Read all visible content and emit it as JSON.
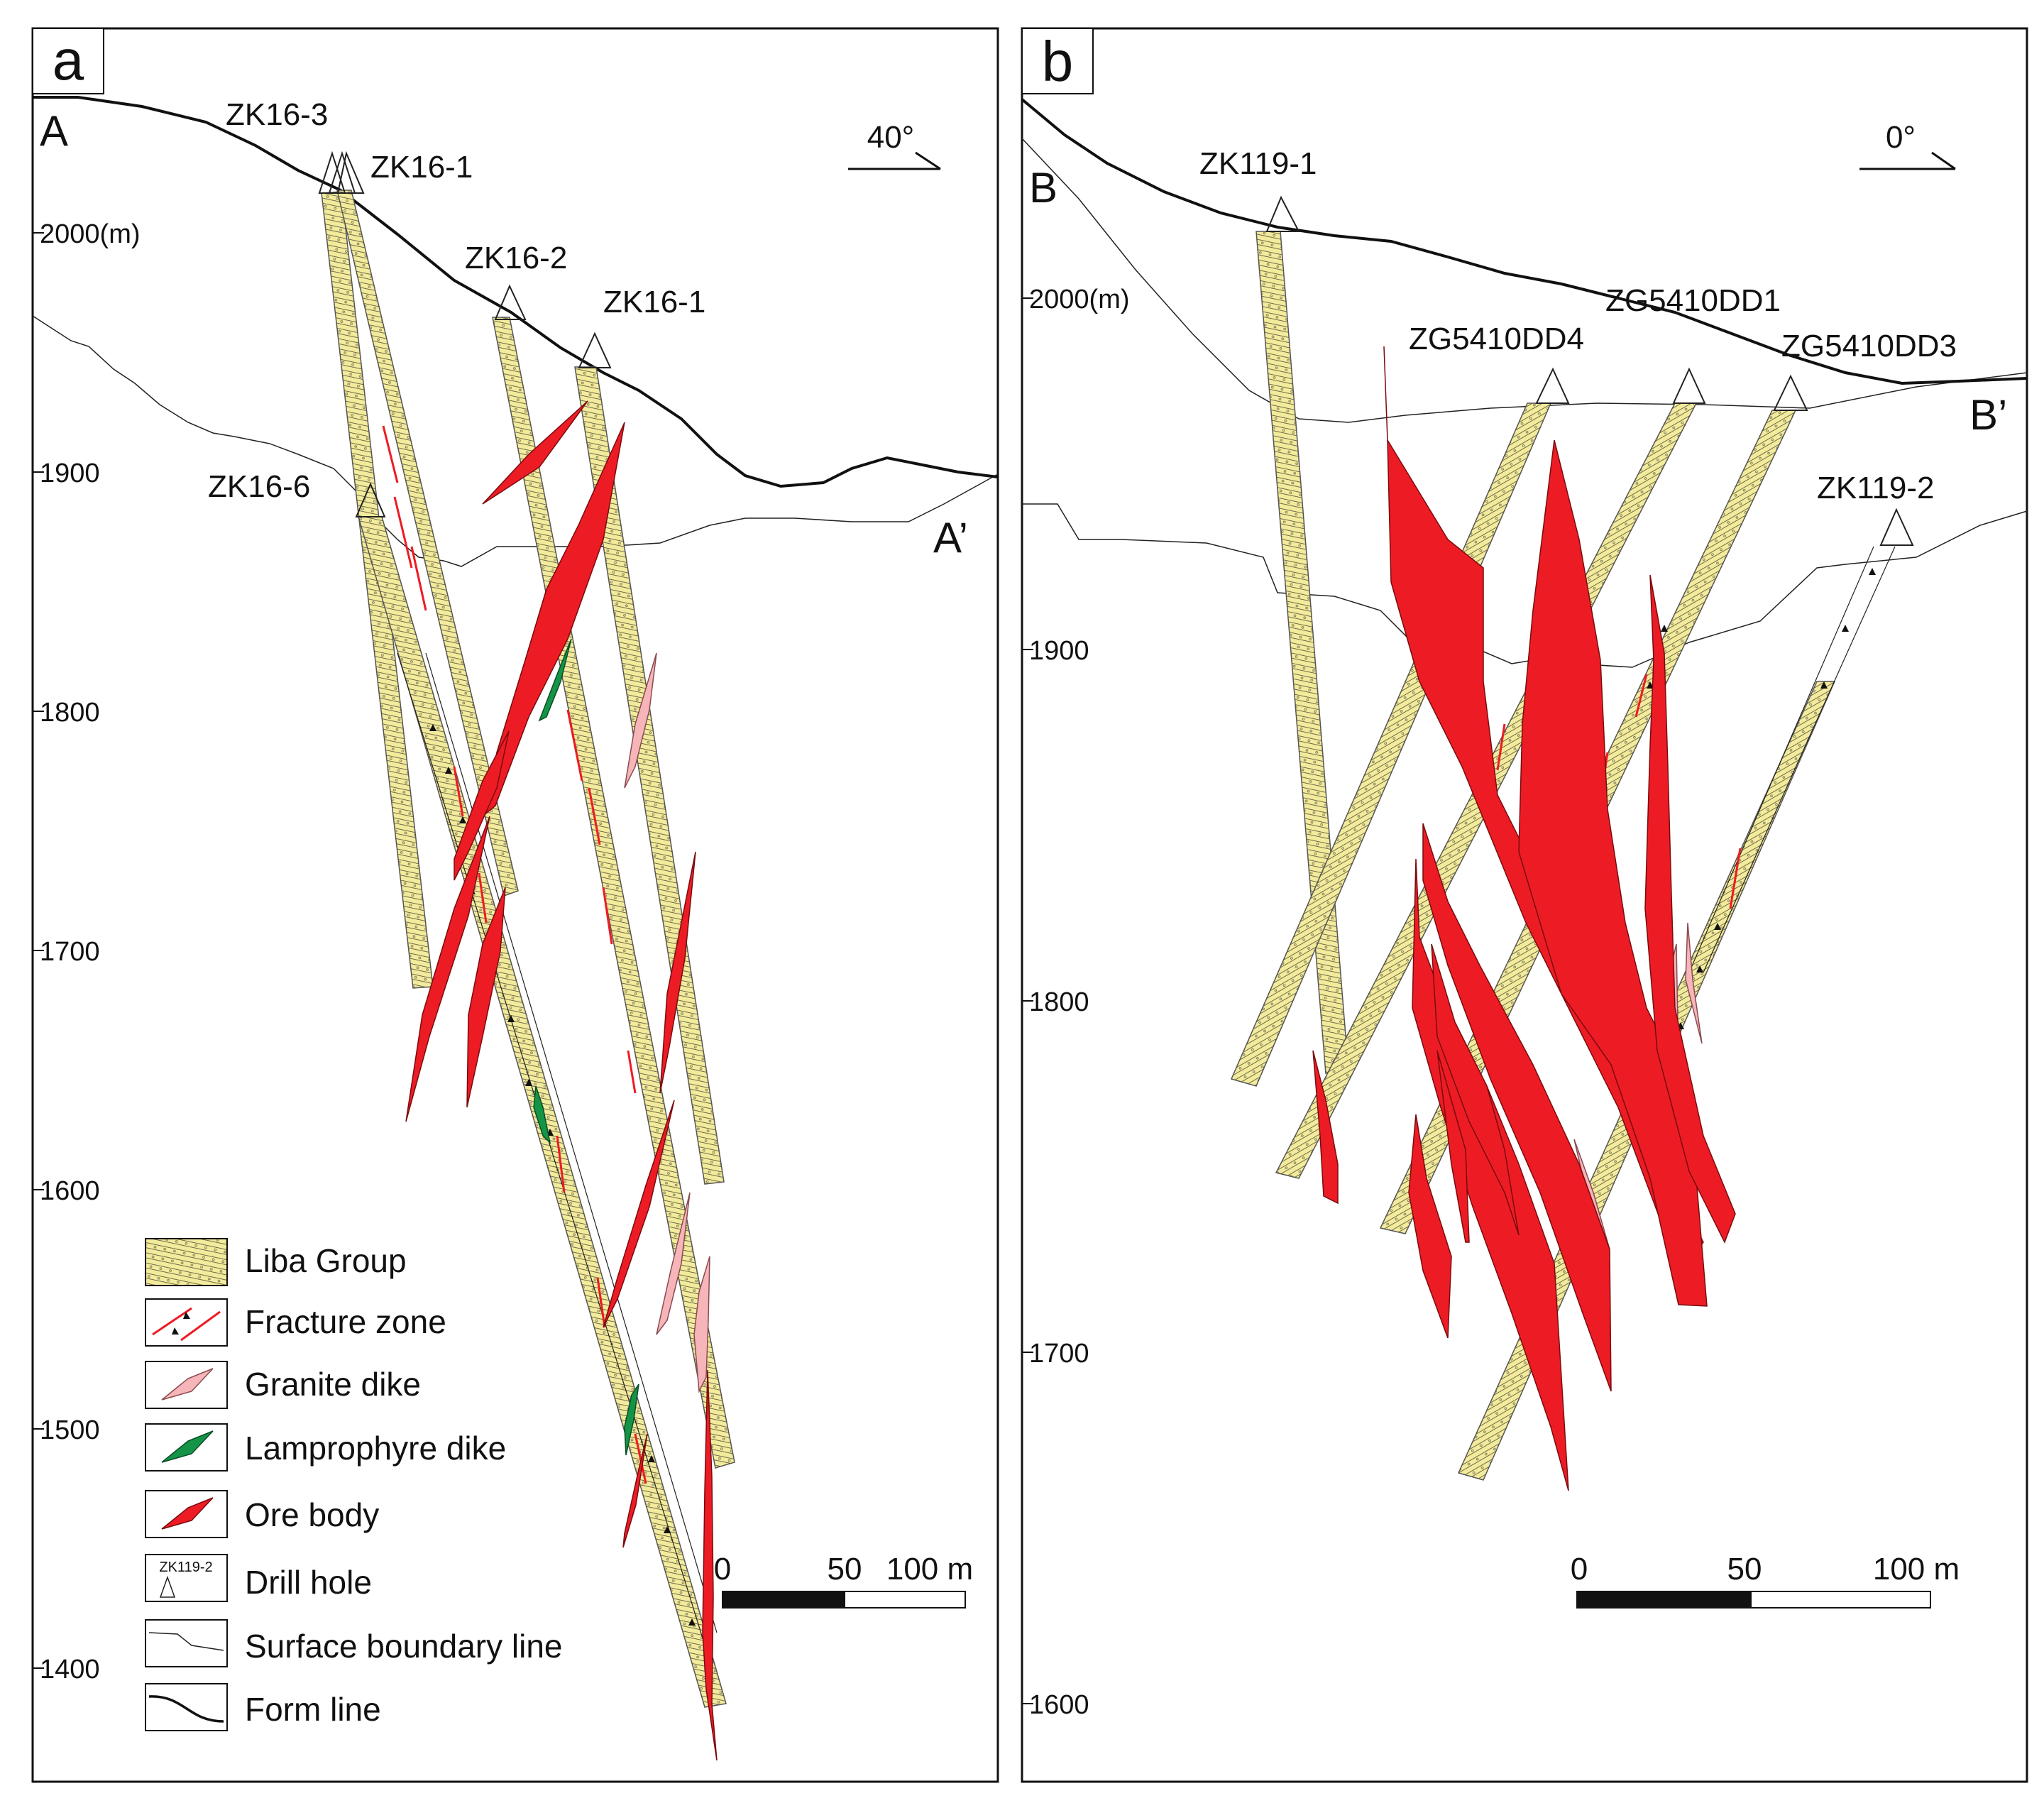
{
  "colors": {
    "liba_fill": "#f3eb9c",
    "ore": "#ed1c24",
    "granite": "#f6b5b9",
    "lamprophyre": "#149447",
    "fracture": "#ed1c24",
    "line": "#111111"
  },
  "panel_a": {
    "letter": "a",
    "section_start": "A",
    "section_end": "A’",
    "direction": "40°",
    "elev_ticks": [
      "2000(m)",
      "1900",
      "1800",
      "1700",
      "1600",
      "1500",
      "1400"
    ],
    "drill_holes": [
      "ZK16-3",
      "ZK16-1",
      "ZK16-2",
      "ZK16-1",
      "ZK16-6"
    ],
    "scale": {
      "labels": [
        "0",
        "50",
        "100 m"
      ]
    }
  },
  "panel_b": {
    "letter": "b",
    "section_start": "B",
    "section_end": "B’",
    "direction": "0°",
    "elev_ticks": [
      "2000(m)",
      "1900",
      "1800",
      "1700",
      "1600"
    ],
    "drill_holes": [
      "ZK119-1",
      "ZG5410DD4",
      "ZG5410DD1",
      "ZG5410DD3",
      "ZK119-2"
    ],
    "scale": {
      "labels": [
        "0",
        "50",
        "100 m"
      ]
    }
  },
  "legend": {
    "items": [
      {
        "label": "Liba Group"
      },
      {
        "label": "Fracture zone"
      },
      {
        "label": "Granite dike"
      },
      {
        "label": "Lamprophyre dike"
      },
      {
        "label": "Ore body"
      },
      {
        "label": "Drill hole",
        "sample_text": "ZK119-2"
      },
      {
        "label": "Surface boundary line"
      },
      {
        "label": "Form line"
      }
    ]
  }
}
